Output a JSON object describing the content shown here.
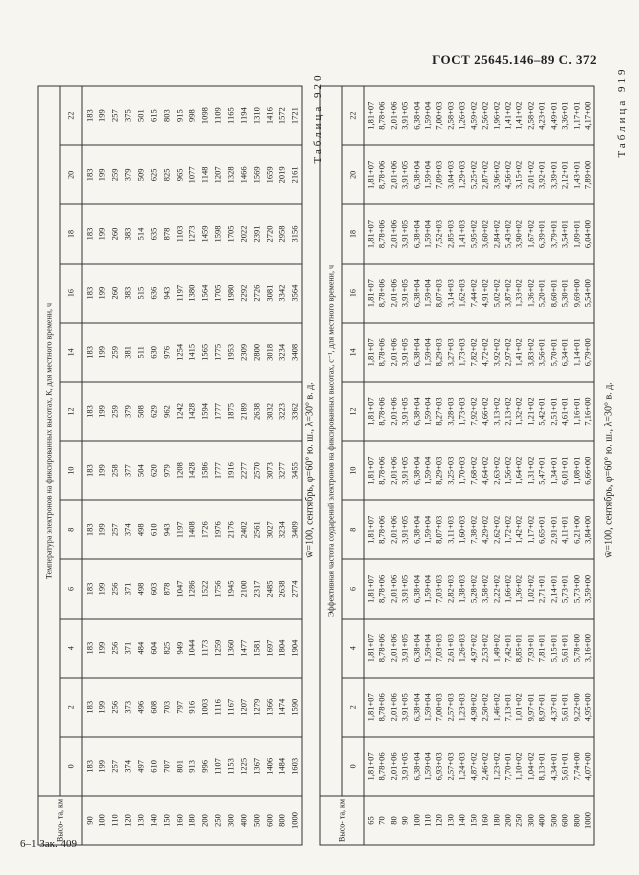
{
  "header": {
    "gost": "ГОСТ 25645.146–89 С. 372"
  },
  "tables": [
    {
      "label": "Таблица 919",
      "caption": "w̄=100, сентябрь, φ=60° ю. ш., λ=30° в. д.",
      "heading": "Температура электронов на фиксированных высотах, К, для местного времени, ч",
      "height_label": "Высо- та, км",
      "heights": [
        "90",
        "100",
        "110",
        "120",
        "130",
        "140",
        "150",
        "160",
        "180",
        "200",
        "250",
        "300",
        "400",
        "500",
        "600",
        "800",
        "1000"
      ],
      "columns": [
        {
          "hour": "0",
          "values": [
            "183",
            "199",
            "257",
            "374",
            "497",
            "610",
            "707",
            "801",
            "913",
            "996",
            "1107",
            "1153",
            "1225",
            "1367",
            "1406",
            "1484",
            "1603"
          ]
        },
        {
          "hour": "2",
          "values": [
            "183",
            "199",
            "256",
            "373",
            "496",
            "608",
            "703",
            "797",
            "916",
            "1003",
            "1116",
            "1167",
            "1207",
            "1279",
            "1366",
            "1474",
            "1590"
          ]
        },
        {
          "hour": "4",
          "values": [
            "183",
            "199",
            "256",
            "371",
            "484",
            "604",
            "825",
            "949",
            "1044",
            "1173",
            "1259",
            "1360",
            "1477",
            "1581",
            "1697",
            "1804",
            "1904"
          ]
        },
        {
          "hour": "6",
          "values": [
            "183",
            "199",
            "256",
            "371",
            "498",
            "603",
            "878",
            "1047",
            "1286",
            "1522",
            "1756",
            "1945",
            "2100",
            "2317",
            "2485",
            "2638",
            "2774"
          ]
        },
        {
          "hour": "8",
          "values": [
            "183",
            "199",
            "257",
            "374",
            "498",
            "610",
            "943",
            "1197",
            "1408",
            "1726",
            "1976",
            "2176",
            "2402",
            "2561",
            "3027",
            "3234",
            "3409"
          ]
        },
        {
          "hour": "10",
          "values": [
            "183",
            "199",
            "258",
            "377",
            "504",
            "620",
            "979",
            "1208",
            "1428",
            "1586",
            "1777",
            "1916",
            "2277",
            "2570",
            "3073",
            "3277",
            "3455"
          ]
        },
        {
          "hour": "12",
          "values": [
            "183",
            "199",
            "259",
            "379",
            "508",
            "629",
            "962",
            "1242",
            "1428",
            "1594",
            "1777",
            "1875",
            "2189",
            "2638",
            "3032",
            "3223",
            "3362"
          ]
        },
        {
          "hour": "14",
          "values": [
            "183",
            "199",
            "259",
            "381",
            "511",
            "630",
            "976",
            "1254",
            "1415",
            "1565",
            "1775",
            "1953",
            "2309",
            "2800",
            "3018",
            "3234",
            "3408"
          ]
        },
        {
          "hour": "16",
          "values": [
            "183",
            "199",
            "260",
            "383",
            "515",
            "636",
            "943",
            "1197",
            "1380",
            "1564",
            "1705",
            "1980",
            "2292",
            "2726",
            "3081",
            "3342",
            "3564"
          ]
        },
        {
          "hour": "18",
          "values": [
            "183",
            "199",
            "260",
            "383",
            "514",
            "635",
            "878",
            "1103",
            "1273",
            "1459",
            "1598",
            "1705",
            "2022",
            "2391",
            "2720",
            "2958",
            "3156"
          ]
        },
        {
          "hour": "20",
          "values": [
            "183",
            "199",
            "259",
            "379",
            "509",
            "625",
            "825",
            "965",
            "1077",
            "1148",
            "1207",
            "1328",
            "1466",
            "1569",
            "1659",
            "2019",
            "2161"
          ]
        },
        {
          "hour": "22",
          "values": [
            "183",
            "199",
            "257",
            "375",
            "501",
            "615",
            "803",
            "915",
            "998",
            "1098",
            "1109",
            "1165",
            "1194",
            "1310",
            "1416",
            "1572",
            "1721"
          ]
        }
      ]
    },
    {
      "label": "Таблица 920",
      "caption": "w̄=100, сентябрь, φ=60° ю. ш., λ=30° в. д.",
      "heading": "Эффективная частота соударений электронов на фиксированных высотах, с⁻¹, для местного времени, ч",
      "height_label": "Высо- та, км",
      "heights": [
        "65",
        "70",
        "80",
        "90",
        "100",
        "110",
        "120",
        "130",
        "140",
        "150",
        "160",
        "180",
        "200",
        "250",
        "300",
        "400",
        "500",
        "600",
        "800",
        "1000"
      ],
      "columns": [
        {
          "hour": "0",
          "values": [
            "1,81+07",
            "8,78+06",
            "2,01+06",
            "3,91+05",
            "6,38+04",
            "1,59+04",
            "6,93+03",
            "2,57+03",
            "1,24+03",
            "4,87+02",
            "2,46+02",
            "1,23+02",
            "7,70+01",
            "1,10+02",
            "1,04+02",
            "8,13+01",
            "4,34+01",
            "5,61+01",
            "7,74+00",
            "4,07+00"
          ]
        },
        {
          "hour": "2",
          "values": [
            "1,81+07",
            "8,78+06",
            "2,01+06",
            "3,91+05",
            "6,38+04",
            "1,59+04",
            "7,00+03",
            "2,57+03",
            "1,23+03",
            "4,98+02",
            "2,50+02",
            "1,46+02",
            "7,13+01",
            "1,01+02",
            "9,97+01",
            "8,97+01",
            "4,37+01",
            "5,61+01",
            "9,22+00",
            "4,95+00"
          ]
        },
        {
          "hour": "4",
          "values": [
            "1,81+07",
            "8,78+06",
            "2,01+06",
            "3,91+05",
            "6,38+04",
            "1,59+04",
            "7,03+03",
            "2,61+03",
            "1,26+03",
            "4,97+02",
            "2,53+02",
            "1,49+02",
            "7,42+01",
            "8,85+01",
            "7,93+01",
            "7,81+01",
            "5,15+01",
            "5,61+01",
            "5,78+00",
            "3,16+00"
          ]
        },
        {
          "hour": "6",
          "values": [
            "1,81+07",
            "8,78+06",
            "2,01+06",
            "3,91+05",
            "6,38+04",
            "1,59+04",
            "7,03+03",
            "2,82+03",
            "1,38+03",
            "5,28+02",
            "3,58+02",
            "2,22+02",
            "1,66+02",
            "1,36+02",
            "1,02+02",
            "2,71+01",
            "2,14+01",
            "5,73+01",
            "5,73+00",
            "3,59+00"
          ]
        },
        {
          "hour": "8",
          "values": [
            "1,81+07",
            "8,78+06",
            "2,01+06",
            "3,91+05",
            "6,38+04",
            "1,59+04",
            "8,07+03",
            "3,11+03",
            "1,60+03",
            "7,38+02",
            "4,29+02",
            "2,62+02",
            "1,72+02",
            "1,42+02",
            "1,17+02",
            "6,65+01",
            "2,91+01",
            "4,11+01",
            "6,21+00",
            "3,84+00"
          ]
        },
        {
          "hour": "10",
          "values": [
            "1,81+07",
            "8,78+06",
            "2,01+06",
            "3,91+05",
            "6,38+04",
            "1,59+04",
            "8,29+03",
            "3,25+03",
            "1,70+03",
            "7,68+02",
            "4,64+02",
            "2,63+02",
            "1,56+02",
            "1,64+02",
            "1,31+02",
            "5,47+01",
            "1,34+01",
            "6,01+01",
            "1,08+01",
            "6,66+00"
          ]
        },
        {
          "hour": "12",
          "values": [
            "1,81+07",
            "8,78+06",
            "2,01+06",
            "3,91+05",
            "6,38+04",
            "1,59+04",
            "8,27+03",
            "3,28+03",
            "1,73+03",
            "7,92+02",
            "4,66+02",
            "3,13+02",
            "2,13+02",
            "1,32+02",
            "1,21+02",
            "5,42+01",
            "2,51+01",
            "4,61+01",
            "1,16+01",
            "7,16+00"
          ]
        },
        {
          "hour": "14",
          "values": [
            "1,81+07",
            "8,78+06",
            "2,01+06",
            "3,91+05",
            "6,38+04",
            "1,59+04",
            "8,29+03",
            "3,27+03",
            "1,73+03",
            "7,82+02",
            "4,72+02",
            "3,92+02",
            "2,97+02",
            "1,41+02",
            "3,83+02",
            "3,56+01",
            "5,70+01",
            "6,34+01",
            "1,14+01",
            "6,79+00"
          ]
        },
        {
          "hour": "16",
          "values": [
            "1,81+07",
            "8,78+06",
            "2,01+06",
            "3,91+05",
            "6,38+04",
            "1,59+04",
            "8,07+03",
            "3,14+03",
            "1,62+03",
            "7,44+02",
            "4,91+02",
            "5,02+02",
            "3,87+02",
            "1,33+02",
            "1,36+02",
            "5,20+01",
            "8,60+01",
            "5,30+01",
            "9,69+00",
            "5,54+00"
          ]
        },
        {
          "hour": "18",
          "values": [
            "1,81+07",
            "8,78+06",
            "2,01+06",
            "3,91+05",
            "6,38+04",
            "1,59+04",
            "7,52+03",
            "2,85+03",
            "1,41+03",
            "5,95+02",
            "3,60+02",
            "2,84+02",
            "5,43+02",
            "3,90+02",
            "1,67+02",
            "6,39+01",
            "3,79+01",
            "3,54+01",
            "1,09+01",
            "6,04+00"
          ]
        },
        {
          "hour": "20",
          "values": [
            "1,81+07",
            "8,78+06",
            "2,01+06",
            "3,91+05",
            "6,38+04",
            "1,59+04",
            "7,09+03",
            "3,04+03",
            "1,29+03",
            "5,25+02",
            "2,87+02",
            "3,96+02",
            "4,56+02",
            "3,15+02",
            "2,01+02",
            "3,92+01",
            "3,39+01",
            "2,12+01",
            "1,43+01",
            "7,89+00"
          ]
        },
        {
          "hour": "22",
          "values": [
            "1,81+07",
            "8,78+06",
            "2,01+06",
            "3,91+05",
            "6,38+04",
            "1,59+04",
            "7,00+03",
            "2,58+03",
            "1,26+03",
            "4,59+02",
            "2,56+02",
            "1,96+02",
            "1,41+02",
            "1,41+02",
            "2,58+02",
            "4,23+01",
            "4,49+01",
            "3,36+01",
            "1,17+01",
            "4,17+00"
          ]
        }
      ]
    }
  ],
  "footer": "6–1 Зак. 409"
}
